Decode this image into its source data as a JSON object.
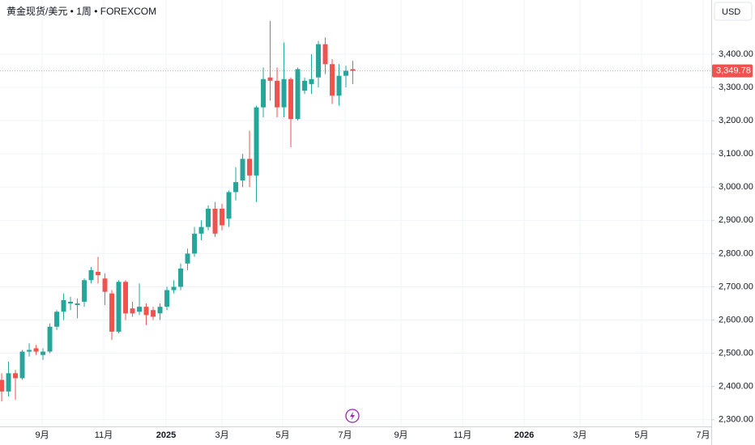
{
  "chart_data": {
    "type": "candlestick",
    "title": "黄金现货/美元 • 1周 • FOREXCOM",
    "currency": "USD",
    "categories": [
      null,
      null,
      null,
      null,
      null,
      null,
      null,
      null,
      null,
      null,
      null,
      null,
      null,
      null,
      null,
      null,
      null,
      null,
      null,
      null,
      null,
      null,
      null,
      null,
      null,
      null,
      null,
      null,
      null,
      null,
      null,
      null,
      null,
      null,
      null,
      null,
      null,
      null,
      null,
      null,
      null,
      null,
      null,
      null,
      null,
      null,
      null,
      null,
      null,
      null,
      null,
      null
    ],
    "open": [
      2420,
      2385,
      2440,
      2425,
      2505,
      2515,
      2495,
      2505,
      2580,
      2625,
      2650,
      2645,
      2655,
      2720,
      2745,
      2725,
      2680,
      2565,
      2715,
      2635,
      2625,
      2640,
      2630,
      2620,
      2640,
      2690,
      2700,
      2770,
      2800,
      2860,
      2880,
      2935,
      2935,
      2905,
      2985,
      3020,
      3085,
      3035,
      3240,
      3330,
      3320,
      3240,
      3325,
      3205,
      3290,
      3310,
      3330,
      3430,
      3370,
      3275,
      3335,
      3355
    ],
    "high": [
      2440,
      2475,
      2450,
      2510,
      2530,
      2525,
      2515,
      2590,
      2630,
      2680,
      2670,
      2665,
      2725,
      2760,
      2790,
      2740,
      2690,
      2720,
      2720,
      2655,
      2710,
      2650,
      2640,
      2650,
      2700,
      2720,
      2770,
      2815,
      2880,
      2900,
      2945,
      2955,
      2950,
      2990,
      3060,
      3100,
      3170,
      3245,
      3360,
      3500,
      3360,
      3435,
      3330,
      3360,
      3330,
      3400,
      3440,
      3450,
      3385,
      3370,
      3365,
      3380
    ],
    "low": [
      2355,
      2370,
      2360,
      2420,
      2490,
      2495,
      2480,
      2500,
      2570,
      2600,
      2630,
      2605,
      2640,
      2710,
      2710,
      2645,
      2540,
      2560,
      2600,
      2610,
      2615,
      2585,
      2600,
      2600,
      2630,
      2680,
      2690,
      2750,
      2790,
      2840,
      2870,
      2850,
      2870,
      2880,
      2960,
      3000,
      3000,
      2955,
      3210,
      3260,
      3210,
      3210,
      3120,
      3200,
      3280,
      3280,
      3300,
      3340,
      3250,
      3245,
      3300,
      3310
    ],
    "close": [
      2385,
      2440,
      2425,
      2505,
      2510,
      2505,
      2505,
      2580,
      2625,
      2660,
      2655,
      2650,
      2720,
      2750,
      2735,
      2685,
      2565,
      2715,
      2620,
      2620,
      2640,
      2615,
      2610,
      2640,
      2690,
      2700,
      2755,
      2800,
      2860,
      2880,
      2935,
      2860,
      2885,
      2985,
      3015,
      3085,
      3035,
      3240,
      3325,
      3320,
      3240,
      3325,
      3205,
      3355,
      3320,
      3325,
      3430,
      3370,
      3275,
      3335,
      3350,
      3349.78
    ],
    "up_color": "#26a69a",
    "down_color": "#ef5350",
    "last_price": {
      "value": 3349.78,
      "label": "3,349.78"
    },
    "xlim": [
      -0.24,
      103.06
    ],
    "xticks": [
      {
        "value": 5.88,
        "label": "9月"
      },
      {
        "value": 14.82,
        "label": "11月"
      },
      {
        "value": 23.88,
        "label": "2025"
      },
      {
        "value": 32.0,
        "label": "3月"
      },
      {
        "value": 40.82,
        "label": "5月"
      },
      {
        "value": 49.88,
        "label": "7月"
      },
      {
        "value": 58.0,
        "label": "9月"
      },
      {
        "value": 66.94,
        "label": "11月"
      },
      {
        "value": 75.88,
        "label": "2026"
      },
      {
        "value": 84.0,
        "label": "3月"
      },
      {
        "value": 92.94,
        "label": "5月"
      },
      {
        "value": 101.88,
        "label": "7月"
      }
    ],
    "ylim": [
      2280,
      3563
    ],
    "yticks": [
      {
        "value": 2300,
        "label": "2,300.00"
      },
      {
        "value": 2400,
        "label": "2,400.00"
      },
      {
        "value": 2500,
        "label": "2,500.00"
      },
      {
        "value": 2600,
        "label": "2,600.00"
      },
      {
        "value": 2700,
        "label": "2,700.00"
      },
      {
        "value": 2800,
        "label": "2,800.00"
      },
      {
        "value": 2900,
        "label": "2,900.00"
      },
      {
        "value": 3000,
        "label": "3,000.00"
      },
      {
        "value": 3100,
        "label": "3,100.00"
      },
      {
        "value": 3200,
        "label": "3,200.00"
      },
      {
        "value": 3300,
        "label": "3,300.00"
      },
      {
        "value": 3400,
        "label": "3,400.00"
      }
    ],
    "grid": true
  }
}
